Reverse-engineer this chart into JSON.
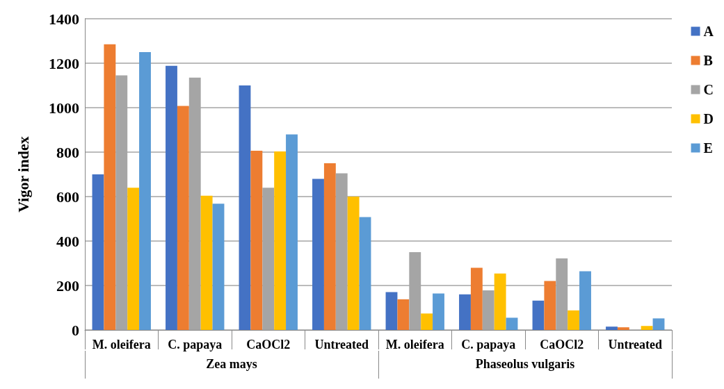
{
  "chart_data": {
    "type": "bar",
    "ylabel": "Vigor index",
    "categories": [
      "M. oleifera",
      "C. papaya",
      "CaOCl2",
      "Untreated",
      "M. oleifera",
      "C. papaya",
      "CaOCl2",
      "Untreated"
    ],
    "annotations": [
      "Zea mays",
      "Phaseolus vulgaris"
    ],
    "series": [
      {
        "name": "A",
        "color": "#4472c4",
        "values": [
          700,
          1188,
          1100,
          680,
          170,
          160,
          132,
          15
        ]
      },
      {
        "name": "B",
        "color": "#ed7d31",
        "values": [
          1285,
          1008,
          806,
          750,
          138,
          280,
          220,
          12
        ]
      },
      {
        "name": "C",
        "color": "#a5a5a5",
        "values": [
          1145,
          1135,
          640,
          705,
          350,
          178,
          322,
          0
        ]
      },
      {
        "name": "D",
        "color": "#ffc000",
        "values": [
          640,
          604,
          803,
          600,
          74,
          254,
          88,
          18
        ]
      },
      {
        "name": "E",
        "color": "#5b9bd5",
        "values": [
          1250,
          568,
          880,
          508,
          164,
          55,
          264,
          52
        ]
      }
    ],
    "ylim": [
      0,
      1400
    ],
    "yticks": [
      0,
      200,
      400,
      600,
      800,
      1000,
      1200,
      1400
    ],
    "grid": true,
    "legend": "right"
  }
}
